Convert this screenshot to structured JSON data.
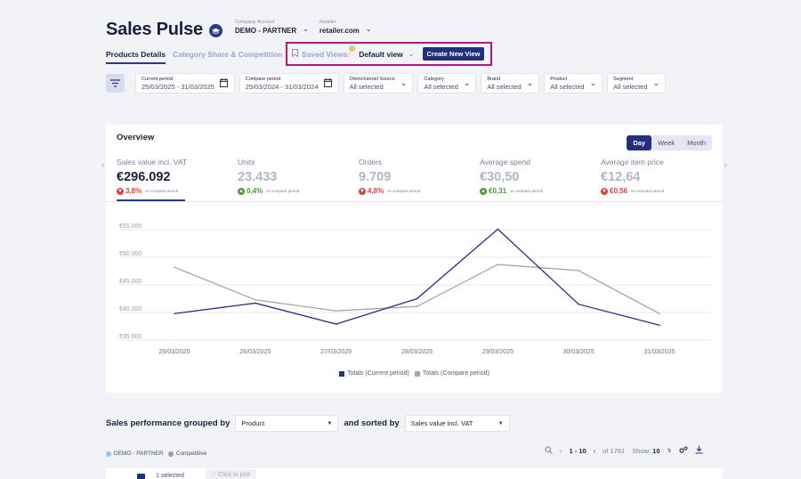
{
  "header": {
    "title": "Sales Pulse",
    "company_label": "Company Account",
    "company_value": "DEMO - PARTNER",
    "retailer_label": "Retailer",
    "retailer_value": "retailer.com"
  },
  "tabs": [
    {
      "label": "Products Details",
      "active": true
    },
    {
      "label": "Category Share & Competition",
      "active": false
    }
  ],
  "saved_views": {
    "label": "Saved Views:",
    "selected": "Default view",
    "create_label": "Create New View"
  },
  "filters": [
    {
      "label": "Current period",
      "value": "25/03/2025 - 31/03/2025",
      "icon": "calendar-icon"
    },
    {
      "label": "Compare period",
      "value": "25/03/2024 - 31/03/2024",
      "icon": "calendar-icon"
    },
    {
      "label": "Omnichannel Source",
      "value": "All selected",
      "icon": "chevron-down-icon"
    },
    {
      "label": "Category",
      "value": "All selected",
      "icon": "chevron-down-icon"
    },
    {
      "label": "Brand",
      "value": "All selected",
      "icon": "chevron-down-icon"
    },
    {
      "label": "Product",
      "value": "All selected",
      "icon": "chevron-down-icon"
    },
    {
      "label": "Segment",
      "value": "All selected",
      "icon": "chevron-down-icon"
    }
  ],
  "overview": {
    "title": "Overview",
    "period_options": [
      "Day",
      "Week",
      "Month"
    ],
    "period_selected": "Day",
    "kpis": [
      {
        "label": "Sales value incl. VAT",
        "value": "€296.092",
        "change": "3,8%",
        "direction": "down",
        "vs": "vs compare period",
        "active": true
      },
      {
        "label": "Units",
        "value": "23.433",
        "change": "0,4%",
        "direction": "up",
        "vs": "vs compare period",
        "active": false
      },
      {
        "label": "Orders",
        "value": "9.709",
        "change": "4,8%",
        "direction": "down",
        "vs": "vs compare period",
        "active": false
      },
      {
        "label": "Average spend",
        "value": "€30,50",
        "change": "€0,31",
        "direction": "up",
        "vs": "vs compare period",
        "active": false
      },
      {
        "label": "Average item price",
        "value": "€12,64",
        "change": "€0,56",
        "direction": "down",
        "vs": "vs compare period",
        "active": false
      }
    ]
  },
  "chart_data": {
    "type": "line",
    "x": [
      "25/03/2025",
      "26/03/2025",
      "27/03/2025",
      "28/03/2025",
      "29/03/2025",
      "30/03/2025",
      "31/03/2025"
    ],
    "series": [
      {
        "name": "Totals (Current period)",
        "color": "#23318a",
        "values": [
          39800,
          41700,
          37900,
          42500,
          55100,
          41500,
          37700
        ]
      },
      {
        "name": "Totals (Compare period)",
        "color": "#a5a7ae",
        "values": [
          48200,
          42300,
          40300,
          41100,
          48700,
          47600,
          39800
        ]
      }
    ],
    "y_ticks": [
      "€35.000",
      "€40.000",
      "€45.000",
      "€50.000",
      "€55.000"
    ],
    "ylim": [
      35000,
      55000
    ],
    "grid": true,
    "legend": "bottom-center"
  },
  "performance": {
    "grouped_label": "Sales performance grouped by",
    "group_value": "Product",
    "sorted_label": "and sorted by",
    "sort_value": "Sales value incl. VAT"
  },
  "table_legend": [
    {
      "label": "DEMO - PARTNER",
      "color": "#8ec6ea"
    },
    {
      "label": "Competitive",
      "color": "#9a9ca6"
    }
  ],
  "pager": {
    "range": "1 - 10",
    "total": "of 1781",
    "show_label": "Show:",
    "show_value": "10"
  },
  "row": {
    "selected_text": "1 selected",
    "plot_label": "Click to plot"
  }
}
